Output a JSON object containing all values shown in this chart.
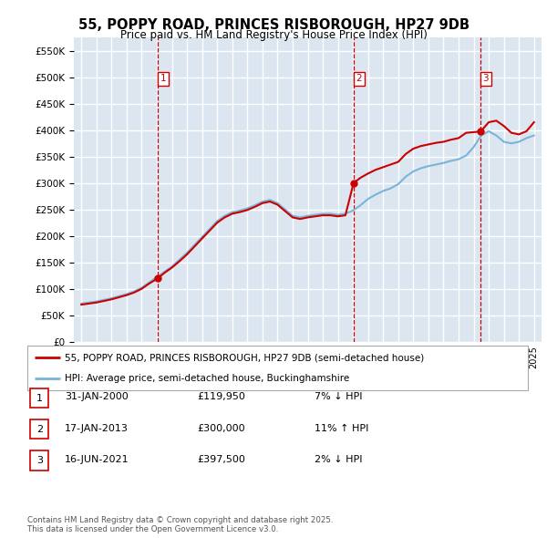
{
  "title": "55, POPPY ROAD, PRINCES RISBOROUGH, HP27 9DB",
  "subtitle": "Price paid vs. HM Land Registry's House Price Index (HPI)",
  "ylim": [
    0,
    575000
  ],
  "yticks": [
    0,
    50000,
    100000,
    150000,
    200000,
    250000,
    300000,
    350000,
    400000,
    450000,
    500000,
    550000
  ],
  "xlim_start": 1994.5,
  "xlim_end": 2025.5,
  "plot_bg_color": "#dce6f1",
  "grid_color": "#ffffff",
  "red_line_color": "#cc0000",
  "blue_line_color": "#7ab4d8",
  "vline_color": "#cc0000",
  "legend_line1": "55, POPPY ROAD, PRINCES RISBOROUGH, HP27 9DB (semi-detached house)",
  "legend_line2": "HPI: Average price, semi-detached house, Buckinghamshire",
  "transactions": [
    {
      "num": 1,
      "date": "31-JAN-2000",
      "price": 119950,
      "pct": "7%",
      "dir": "↓",
      "year": 2000.08
    },
    {
      "num": 2,
      "date": "17-JAN-2013",
      "price": 300000,
      "pct": "11%",
      "dir": "↑",
      "year": 2013.04
    },
    {
      "num": 3,
      "date": "16-JUN-2021",
      "price": 397500,
      "pct": "2%",
      "dir": "↓",
      "year": 2021.46
    }
  ],
  "footnote": "Contains HM Land Registry data © Crown copyright and database right 2025.\nThis data is licensed under the Open Government Licence v3.0.",
  "hpi_years": [
    1995,
    1995.5,
    1996,
    1996.5,
    1997,
    1997.5,
    1998,
    1998.5,
    1999,
    1999.5,
    2000,
    2000.5,
    2001,
    2001.5,
    2002,
    2002.5,
    2003,
    2003.5,
    2004,
    2004.5,
    2005,
    2005.5,
    2006,
    2006.5,
    2007,
    2007.5,
    2008,
    2008.5,
    2009,
    2009.5,
    2010,
    2010.5,
    2011,
    2011.5,
    2012,
    2012.5,
    2013,
    2013.5,
    2014,
    2014.5,
    2015,
    2015.5,
    2016,
    2016.5,
    2017,
    2017.5,
    2018,
    2018.5,
    2019,
    2019.5,
    2020,
    2020.5,
    2021,
    2021.5,
    2022,
    2022.5,
    2023,
    2023.5,
    2024,
    2024.5,
    2025
  ],
  "hpi_values": [
    72000,
    74000,
    76000,
    79000,
    82000,
    86000,
    90000,
    95000,
    102000,
    112000,
    122000,
    132000,
    142000,
    155000,
    168000,
    183000,
    198000,
    213000,
    228000,
    238000,
    245000,
    248000,
    252000,
    258000,
    265000,
    268000,
    262000,
    250000,
    238000,
    235000,
    238000,
    240000,
    242000,
    242000,
    240000,
    242000,
    248000,
    258000,
    270000,
    278000,
    285000,
    290000,
    298000,
    312000,
    322000,
    328000,
    332000,
    335000,
    338000,
    342000,
    345000,
    352000,
    368000,
    390000,
    398000,
    390000,
    378000,
    375000,
    378000,
    385000,
    390000
  ],
  "red_line_years": [
    1995,
    1995.5,
    1996,
    1996.5,
    1997,
    1997.5,
    1998,
    1998.5,
    1999,
    1999.5,
    2000.08,
    2000.5,
    2001,
    2001.5,
    2002,
    2002.5,
    2003,
    2003.5,
    2004,
    2004.5,
    2005,
    2005.5,
    2006,
    2006.5,
    2007,
    2007.5,
    2008,
    2008.5,
    2009,
    2009.5,
    2010,
    2010.5,
    2011,
    2011.5,
    2012,
    2012.5,
    2013.04,
    2013.5,
    2014,
    2014.5,
    2015,
    2015.5,
    2016,
    2016.5,
    2017,
    2017.5,
    2018,
    2018.5,
    2019,
    2019.5,
    2020,
    2020.5,
    2021.46,
    2022,
    2022.5,
    2023,
    2023.5,
    2024,
    2024.5,
    2025
  ],
  "red_line_values": [
    70000,
    72000,
    74000,
    77000,
    80000,
    84000,
    88000,
    93000,
    100000,
    110000,
    119950,
    130000,
    140000,
    152000,
    165000,
    180000,
    195000,
    210000,
    225000,
    235000,
    242000,
    245000,
    249000,
    255000,
    262000,
    265000,
    259000,
    247000,
    235000,
    232000,
    235000,
    237000,
    239000,
    239000,
    237000,
    239000,
    300000,
    310000,
    318000,
    325000,
    330000,
    335000,
    340000,
    355000,
    365000,
    370000,
    373000,
    376000,
    378000,
    382000,
    385000,
    395000,
    397500,
    415000,
    418000,
    408000,
    395000,
    392000,
    398000,
    415000
  ]
}
